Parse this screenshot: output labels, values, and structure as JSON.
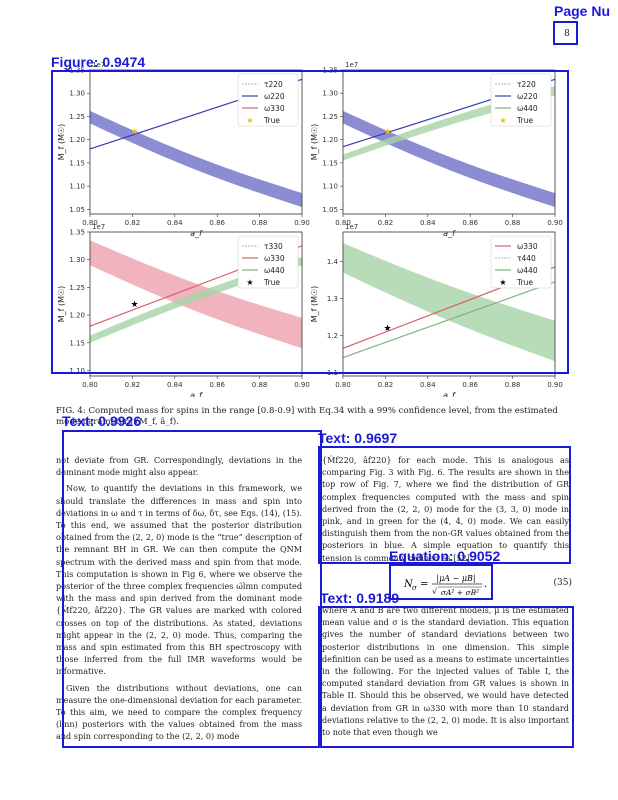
{
  "page_number": "8",
  "annotations": [
    {
      "label": "Page Nu"
    },
    {
      "label": "Figure: 0.9474"
    },
    {
      "label": "Text: 0.9926"
    },
    {
      "label": "Text: 0.9697"
    },
    {
      "label": "Equation: 0.9052"
    },
    {
      "label": "Text: 0.9189"
    }
  ],
  "figure": {
    "exponent_label": "1e7",
    "x_axis_label": "a_f",
    "y_axis_label": "M_f (M☉)",
    "x_ticks": [
      "0.80",
      "0.82",
      "0.84",
      "0.86",
      "0.88",
      "0.90"
    ],
    "panels": [
      {
        "legend": [
          "τ220",
          "ω220",
          "ω330",
          "True"
        ],
        "y_ticks": [
          "1.05",
          "1.10",
          "1.15",
          "1.20",
          "1.25",
          "1.30",
          "1.35"
        ],
        "ylim": [
          1.04,
          1.35
        ],
        "true_point": [
          0.821,
          1.218
        ]
      },
      {
        "legend": [
          "τ220",
          "ω220",
          "ω440",
          "True"
        ],
        "y_ticks": [
          "1.05",
          "1.10",
          "1.15",
          "1.20",
          "1.25",
          "1.30",
          "1.35"
        ],
        "ylim": [
          1.04,
          1.35
        ],
        "true_point": [
          0.821,
          1.218
        ]
      },
      {
        "legend": [
          "τ330",
          "ω330",
          "ω440",
          "True"
        ],
        "y_ticks": [
          "1.10",
          "1.15",
          "1.20",
          "1.25",
          "1.30",
          "1.35"
        ],
        "ylim": [
          1.09,
          1.35
        ],
        "true_point": [
          0.821,
          1.22
        ]
      },
      {
        "legend": [
          "ω330",
          "τ440",
          "ω440",
          "True"
        ],
        "y_ticks": [
          "1.1",
          "1.2",
          "1.3",
          "1.4"
        ],
        "ylim": [
          1.09,
          1.48
        ],
        "true_point": [
          0.821,
          1.22
        ]
      }
    ]
  },
  "caption": "FIG. 4: Computed mass for spins in the range [0.8-0.9] with Eq.34 with a 99% confidence level, from the estimated mode parameters (M_f, â_f).",
  "left_column": [
    "not deviate from GR. Correspondingly, deviations in the dominant mode might also appear.",
    "Now, to quantify the deviations in this framework, we should translate the differences in mass and spin into deviations in ω and τ in terms of δω, δτ, see Eqs. (14), (15). To this end, we assumed that the posterior distribution obtained from the (2, 2, 0) mode is the “true” description of the remnant BH in GR. We can then compute the QNM spectrum with the derived mass and spin from that mode. This computation is shown in Fig 6, where we observe the posterior of the three complex frequencies ω̃lmn computed with the mass and spin derived from the dominant mode {M̂f220, âf220}. The GR values are marked with colored crosses on top of the distributions. As stated, deviations might appear in the (2, 2, 0) mode. Thus, comparing the mass and spin estimated from this BH spectroscopy with those inferred from the full IMR waveforms would be informative.",
    "Given the distributions without deviations, one can measure the one-dimensional deviation for each parameter. To this aim, we need to compare the complex frequency (lmn) posteriors with the values obtained from the mass and spin corresponding to the (2, 2, 0) mode"
  ],
  "right_column_top": "{M̂f220, âf220} for each mode. This is analogous as comparing Fig. 3 with Fig. 6. The results are shown in the top row of Fig. 7, where we find the distribution of GR complex frequencies computed with the mass and spin derived from the (2, 2, 0) mode for the (3, 3, 0) mode in pink, and in green for the (4, 4, 0) mode. We can easily distinguish them from the non-GR values obtained from the posteriors in blue. A simple equation to quantify this tension is commonly defined as [52]",
  "equation": {
    "lhs": "N",
    "lhs_sub": "σ",
    "numerator": "|μA − μB|",
    "denominator": "σA² + σB²",
    "number": "(35)"
  },
  "right_column_bottom": "where A and B are two different models, μ is the estimated mean value and σ is the standard deviation. This equation gives the number of standard deviations between two posterior distributions in one dimension. This simple definition can be used as a means to estimate uncertainties in the following. For the injected values of Table I, the computed standard deviation from GR values is shown in Table II. Should this be observed, we would have detected a deviation from GR in ω330 with more than 10 standard deviations relative to the (2, 2, 0) mode. It is also important to note that even though we",
  "colors": {
    "annotation": "#1a1ad6",
    "blue_band": "#6f6fc8",
    "green_band": "#a6d3a6",
    "pink_band": "#eda0ad"
  }
}
